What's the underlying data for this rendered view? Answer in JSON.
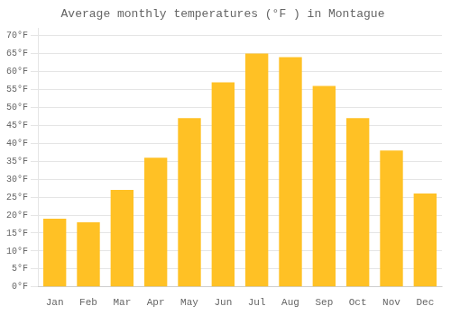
{
  "chart_data": {
    "type": "bar",
    "title": "Average monthly temperatures (°F ) in Montague",
    "categories": [
      "Jan",
      "Feb",
      "Mar",
      "Apr",
      "May",
      "Jun",
      "Jul",
      "Aug",
      "Sep",
      "Oct",
      "Nov",
      "Dec"
    ],
    "values": [
      19,
      18,
      27,
      36,
      47,
      57,
      65,
      64,
      56,
      47,
      38,
      26
    ],
    "color": "#FFC125",
    "ylim": [
      0,
      72
    ],
    "yticks": [
      {
        "value": 0,
        "label": "0°F"
      },
      {
        "value": 5,
        "label": "5°F"
      },
      {
        "value": 10,
        "label": "10°F"
      },
      {
        "value": 15,
        "label": "15°F"
      },
      {
        "value": 20,
        "label": "20°F"
      },
      {
        "value": 25,
        "label": "25°F"
      },
      {
        "value": 30,
        "label": "30°F"
      },
      {
        "value": 35,
        "label": "35°F"
      },
      {
        "value": 40,
        "label": "40°F"
      },
      {
        "value": 45,
        "label": "45°F"
      },
      {
        "value": 50,
        "label": "50°F"
      },
      {
        "value": 55,
        "label": "55°F"
      },
      {
        "value": 60,
        "label": "60°F"
      },
      {
        "value": 65,
        "label": "65°F"
      },
      {
        "value": 70,
        "label": "70°F"
      }
    ],
    "grid": true
  }
}
